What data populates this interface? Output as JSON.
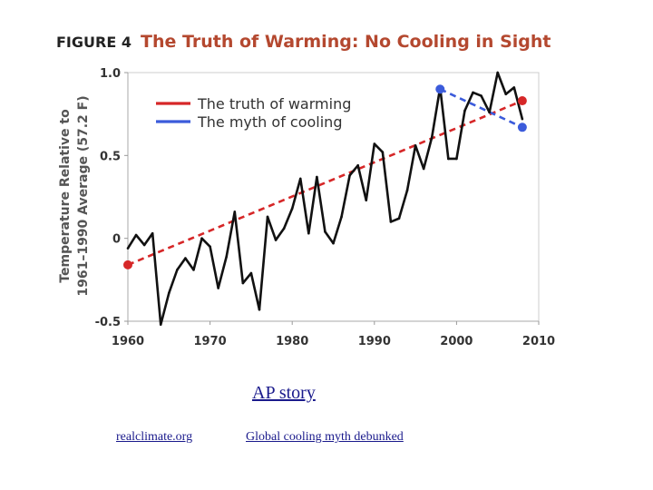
{
  "figure": {
    "label": "FIGURE 4",
    "title": "The Truth of Warming: No Cooling in Sight"
  },
  "chart_data": {
    "type": "line",
    "title": "The Truth of Warming: No Cooling in Sight",
    "xlabel": "",
    "ylabel_lines": [
      "Temperature Relative to",
      "1961–1990 Average (57.2 F)"
    ],
    "xlim": [
      1960,
      2010
    ],
    "ylim": [
      -0.5,
      1.0
    ],
    "x_ticks": [
      1960,
      1970,
      1980,
      1990,
      2000,
      2010
    ],
    "y_ticks": [
      {
        "value": 1.0,
        "label": "1.0"
      },
      {
        "value": 0.5,
        "label": "0.5"
      },
      {
        "value": 0,
        "label": "0"
      },
      {
        "value": -0.5,
        "label": "-0.5"
      }
    ],
    "grid": false,
    "legend_position": "top-left",
    "legend": [
      {
        "label": "The truth of warming",
        "color": "#d62728"
      },
      {
        "label": "The myth of cooling",
        "color": "#3b5bdb"
      }
    ],
    "series": [
      {
        "name": "Temperature anomaly",
        "color": "#111111",
        "x": [
          1960,
          1961,
          1962,
          1963,
          1964,
          1965,
          1966,
          1967,
          1968,
          1969,
          1970,
          1971,
          1972,
          1973,
          1974,
          1975,
          1976,
          1977,
          1978,
          1979,
          1980,
          1981,
          1982,
          1983,
          1984,
          1985,
          1986,
          1987,
          1988,
          1989,
          1990,
          1991,
          1992,
          1993,
          1994,
          1995,
          1996,
          1997,
          1998,
          1999,
          2000,
          2001,
          2002,
          2003,
          2004,
          2005,
          2006,
          2007,
          2008
        ],
        "y": [
          -0.06,
          0.02,
          -0.04,
          0.03,
          -0.52,
          -0.33,
          -0.19,
          -0.12,
          -0.19,
          0.0,
          -0.05,
          -0.3,
          -0.11,
          0.16,
          -0.27,
          -0.21,
          -0.43,
          0.13,
          -0.01,
          0.06,
          0.18,
          0.36,
          0.03,
          0.37,
          0.04,
          -0.03,
          0.13,
          0.38,
          0.44,
          0.23,
          0.57,
          0.52,
          0.1,
          0.12,
          0.29,
          0.56,
          0.42,
          0.61,
          0.91,
          0.48,
          0.48,
          0.77,
          0.88,
          0.86,
          0.76,
          1.0,
          0.87,
          0.91,
          0.72
        ]
      },
      {
        "name": "The truth of warming",
        "style": "dashed",
        "color": "#d62728",
        "x": [
          1960,
          2008
        ],
        "y": [
          -0.16,
          0.83
        ]
      },
      {
        "name": "The myth of cooling",
        "style": "dashed",
        "color": "#3b5bdb",
        "x": [
          1998,
          2008
        ],
        "y": [
          0.9,
          0.67
        ]
      }
    ]
  },
  "links": {
    "ap_story": "AP story",
    "realclimate": "realclimate.org",
    "global_cooling": "Global cooling myth debunked"
  }
}
